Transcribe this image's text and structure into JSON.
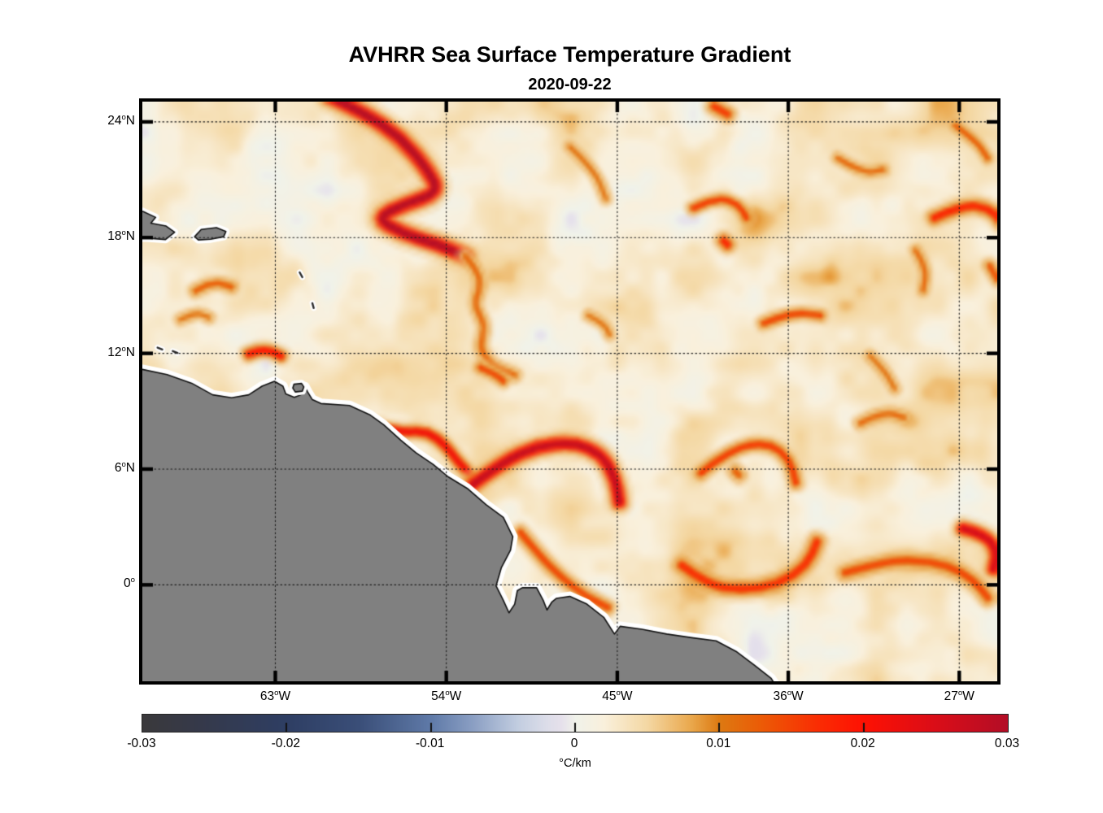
{
  "title": "AVHRR Sea Surface Temperature Gradient",
  "subtitle": "2020-09-22",
  "chart_data": {
    "type": "heatmap",
    "title": "AVHRR Sea Surface Temperature Gradient",
    "subtitle": "2020-09-22",
    "variable": "sea surface temperature gradient",
    "units": "°C/km",
    "lon_range": [
      -70,
      -25
    ],
    "lat_range": [
      -5,
      25.05
    ],
    "grid_style": "dotted",
    "x_ticks": [
      {
        "lon": -63,
        "label": "63°W"
      },
      {
        "lon": -54,
        "label": "54°W"
      },
      {
        "lon": -45,
        "label": "45°W"
      },
      {
        "lon": -36,
        "label": "36°W"
      },
      {
        "lon": -27,
        "label": "27°W"
      }
    ],
    "y_ticks": [
      {
        "lat": 24,
        "label": "24°N"
      },
      {
        "lat": 18,
        "label": "18°N"
      },
      {
        "lat": 12,
        "label": "12°N"
      },
      {
        "lat": 6,
        "label": "6°N"
      },
      {
        "lat": 0,
        "label": "0°"
      }
    ],
    "colorbar": {
      "orientation": "horizontal",
      "min": -0.03,
      "max": 0.03,
      "label": "°C/km",
      "ticks": [
        {
          "value": -0.03,
          "label": "-0.03"
        },
        {
          "value": -0.02,
          "label": "-0.02"
        },
        {
          "value": -0.01,
          "label": "-0.01"
        },
        {
          "value": 0,
          "label": "0"
        },
        {
          "value": 0.01,
          "label": "0.01"
        },
        {
          "value": 0.02,
          "label": "0.02"
        },
        {
          "value": 0.03,
          "label": "0.03"
        }
      ],
      "colormap": [
        [
          -0.03,
          "#3a393b"
        ],
        [
          -0.026,
          "#35394a"
        ],
        [
          -0.02,
          "#2e3e63"
        ],
        [
          -0.015,
          "#3a4e78"
        ],
        [
          -0.01,
          "#5f7aa8"
        ],
        [
          -0.007,
          "#8ca0c4"
        ],
        [
          -0.004,
          "#c2cde0"
        ],
        [
          -0.002,
          "#dcdde9"
        ],
        [
          -0.001,
          "#e5e0eb"
        ],
        [
          0.0,
          "#f0f2ea"
        ],
        [
          0.002,
          "#f9f0dc"
        ],
        [
          0.005,
          "#f4d8a4"
        ],
        [
          0.008,
          "#eaa94e"
        ],
        [
          0.01,
          "#dd7a12"
        ],
        [
          0.013,
          "#ec5a06"
        ],
        [
          0.017,
          "#fa2b03"
        ],
        [
          0.02,
          "#fe1103"
        ],
        [
          0.025,
          "#da0d18"
        ],
        [
          0.03,
          "#b30d26"
        ]
      ]
    },
    "land_color": "#808080",
    "coast_outline_color": "#111111",
    "coast_halo_color": "#ffffff",
    "field": {
      "background_mean": 0.0031,
      "noise_amplitude": 0.005,
      "fronts": [
        {
          "points": [
            [
              -60.1,
              25.3
            ],
            [
              -58.4,
              24.5
            ],
            [
              -56.4,
              23.2
            ],
            [
              -54.9,
              21.4
            ],
            [
              -54.4,
              20.3
            ],
            [
              -56.2,
              19.7
            ],
            [
              -57.7,
              19.0
            ],
            [
              -56.4,
              18.2
            ],
            [
              -54.4,
              17.6
            ],
            [
              -53.0,
              17.0
            ]
          ],
          "peak": 0.03,
          "width": 13
        },
        {
          "points": [
            [
              -53.0,
              17.0
            ],
            [
              -52.0,
              15.9
            ],
            [
              -52.6,
              14.5
            ],
            [
              -51.9,
              13.4
            ],
            [
              -52.3,
              12.2
            ],
            [
              -51.6,
              11.3
            ],
            [
              -50.4,
              10.8
            ]
          ],
          "peak": 0.012,
          "width": 8
        },
        {
          "points": [
            [
              -41.0,
              19.5
            ],
            [
              -39.8,
              20.1
            ],
            [
              -38.6,
              19.7
            ],
            [
              -38.2,
              19.0
            ]
          ],
          "peak": 0.016,
          "width": 8
        },
        {
          "points": [
            [
              -39.4,
              17.8
            ],
            [
              -39.2,
              17.6
            ]
          ],
          "peak": 0.018,
          "width": 10
        },
        {
          "points": [
            [
              -28.3,
              19.0
            ],
            [
              -26.8,
              19.7
            ],
            [
              -25.4,
              19.5
            ],
            [
              -24.8,
              18.8
            ]
          ],
          "peak": 0.018,
          "width": 10
        },
        {
          "points": [
            [
              -27.2,
              23.8
            ],
            [
              -26.1,
              23.0
            ],
            [
              -25.5,
              22.1
            ]
          ],
          "peak": 0.013,
          "width": 7
        },
        {
          "points": [
            [
              -29.3,
              17.3
            ],
            [
              -28.7,
              16.4
            ],
            [
              -28.9,
              15.2
            ]
          ],
          "peak": 0.012,
          "width": 7
        },
        {
          "points": [
            [
              -37.3,
              13.5
            ],
            [
              -35.8,
              14.1
            ],
            [
              -34.3,
              13.9
            ]
          ],
          "peak": 0.015,
          "width": 8
        },
        {
          "points": [
            [
              -31.7,
              11.8
            ],
            [
              -30.9,
              11.0
            ],
            [
              -30.4,
              10.1
            ]
          ],
          "peak": 0.011,
          "width": 7
        },
        {
          "points": [
            [
              -64.4,
              11.9
            ],
            [
              -63.6,
              12.2
            ],
            [
              -62.7,
              11.8
            ]
          ],
          "peak": 0.02,
          "width": 9
        },
        {
          "points": [
            [
              -67.2,
              15.2
            ],
            [
              -66.3,
              15.7
            ],
            [
              -65.3,
              15.4
            ]
          ],
          "peak": 0.013,
          "width": 8
        },
        {
          "points": [
            [
              -58.0,
              8.2
            ],
            [
              -56.5,
              7.8
            ],
            [
              -55.0,
              7.9
            ],
            [
              -54.0,
              7.1
            ],
            [
              -53.4,
              6.3
            ],
            [
              -52.8,
              5.7
            ]
          ],
          "peak": 0.022,
          "width": 9
        },
        {
          "points": [
            [
              -52.6,
              5.1
            ],
            [
              -51.0,
              6.3
            ],
            [
              -49.2,
              7.1
            ],
            [
              -47.3,
              7.3
            ],
            [
              -45.8,
              6.7
            ],
            [
              -45.1,
              5.4
            ],
            [
              -44.9,
              4.2
            ]
          ],
          "peak": 0.028,
          "width": 12
        },
        {
          "points": [
            [
              -50.1,
              2.6
            ],
            [
              -49.0,
              1.3
            ],
            [
              -48.0,
              0.3
            ],
            [
              -46.7,
              -0.7
            ],
            [
              -45.5,
              -1.3
            ]
          ],
          "peak": 0.015,
          "width": 9
        },
        {
          "points": [
            [
              -40.6,
              5.7
            ],
            [
              -39.0,
              7.0
            ],
            [
              -37.0,
              7.3
            ],
            [
              -35.9,
              6.4
            ],
            [
              -35.6,
              5.2
            ]
          ],
          "peak": 0.016,
          "width": 9
        },
        {
          "points": [
            [
              -38.8,
              5.8
            ],
            [
              -38.6,
              5.6
            ]
          ],
          "peak": 0.013,
          "width": 9
        },
        {
          "points": [
            [
              -41.6,
              0.9
            ],
            [
              -40.3,
              -0.1
            ],
            [
              -38.5,
              -0.4
            ],
            [
              -36.5,
              -0.1
            ],
            [
              -35.0,
              0.9
            ],
            [
              -34.5,
              2.1
            ]
          ],
          "peak": 0.017,
          "width": 11
        },
        {
          "points": [
            [
              -33.0,
              0.5
            ],
            [
              -31.3,
              1.0
            ],
            [
              -29.6,
              1.2
            ],
            [
              -27.6,
              0.9
            ],
            [
              -26.2,
              0.1
            ],
            [
              -25.5,
              -0.8
            ]
          ],
          "peak": 0.015,
          "width": 10
        },
        {
          "points": [
            [
              -26.8,
              2.8
            ],
            [
              -25.6,
              2.5
            ],
            [
              -25.0,
              1.6
            ],
            [
              -25.2,
              0.7
            ]
          ],
          "peak": 0.026,
          "width": 11
        },
        {
          "points": [
            [
              -47.5,
              22.7
            ],
            [
              -46.2,
              21.5
            ],
            [
              -45.6,
              20.0
            ]
          ],
          "peak": 0.011,
          "width": 7
        },
        {
          "points": [
            [
              -52.2,
              11.2
            ],
            [
              -51.5,
              10.9
            ],
            [
              -51.0,
              10.5
            ]
          ],
          "peak": 0.015,
          "width": 8
        },
        {
          "points": [
            [
              -46.5,
              13.9
            ],
            [
              -45.7,
              13.5
            ],
            [
              -45.4,
              12.9
            ]
          ],
          "peak": 0.011,
          "width": 7
        },
        {
          "points": [
            [
              -68.0,
              13.7
            ],
            [
              -67.2,
              14.1
            ],
            [
              -66.5,
              13.8
            ]
          ],
          "peak": 0.011,
          "width": 7
        },
        {
          "points": [
            [
              -33.4,
              22.1
            ],
            [
              -32.1,
              21.3
            ],
            [
              -31.0,
              21.5
            ]
          ],
          "peak": 0.012,
          "width": 7
        },
        {
          "points": [
            [
              -39.9,
              24.8
            ],
            [
              -39.2,
              24.4
            ]
          ],
          "peak": 0.016,
          "width": 10
        },
        {
          "points": [
            [
              -25.4,
              16.5
            ],
            [
              -25.0,
              15.8
            ]
          ],
          "peak": 0.014,
          "width": 8
        },
        {
          "points": [
            [
              -32.2,
              8.3
            ],
            [
              -31.0,
              8.9
            ],
            [
              -29.9,
              8.6
            ]
          ],
          "peak": 0.012,
          "width": 8
        }
      ]
    },
    "coastline": {
      "mainland": [
        [
          -71.5,
          11.4
        ],
        [
          -70,
          11.17
        ],
        [
          -68.7,
          10.9
        ],
        [
          -67.4,
          10.45
        ],
        [
          -66.3,
          9.85
        ],
        [
          -65.3,
          9.7
        ],
        [
          -64.4,
          9.85
        ],
        [
          -63.7,
          10.3
        ],
        [
          -63.05,
          10.55
        ],
        [
          -62.6,
          10.3
        ],
        [
          -62.45,
          9.9
        ],
        [
          -62,
          9.72
        ],
        [
          -61.55,
          9.9
        ],
        [
          -61.45,
          10.28
        ],
        [
          -61.3,
          10
        ],
        [
          -61.05,
          9.6
        ],
        [
          -60.6,
          9.4
        ],
        [
          -59.1,
          9.3
        ],
        [
          -58,
          8.8
        ],
        [
          -57.3,
          8.3
        ],
        [
          -56.4,
          7.5
        ],
        [
          -55.6,
          6.85
        ],
        [
          -54.7,
          6.25
        ],
        [
          -53.9,
          5.6
        ],
        [
          -52.9,
          5
        ],
        [
          -51.9,
          4.15
        ],
        [
          -51,
          3.5
        ],
        [
          -50.5,
          2.5
        ],
        [
          -50.62,
          1.8
        ],
        [
          -51.1,
          0.9
        ],
        [
          -51.38,
          -0.05
        ],
        [
          -51,
          -0.8
        ],
        [
          -50.7,
          -1.45
        ],
        [
          -50.4,
          -1
        ],
        [
          -50.26,
          -0.3
        ],
        [
          -50,
          -0.15
        ],
        [
          -49.25,
          -0.15
        ],
        [
          -48.9,
          -0.8
        ],
        [
          -48.7,
          -1.3
        ],
        [
          -48.45,
          -0.9
        ],
        [
          -48.2,
          -0.7
        ],
        [
          -47.5,
          -0.6
        ],
        [
          -46.6,
          -1
        ],
        [
          -45.7,
          -1.7
        ],
        [
          -45.15,
          -2.55
        ],
        [
          -44.85,
          -2.15
        ],
        [
          -43.7,
          -2.3
        ],
        [
          -42.4,
          -2.55
        ],
        [
          -41,
          -2.75
        ],
        [
          -39.8,
          -2.9
        ],
        [
          -38.75,
          -3.45
        ],
        [
          -37.8,
          -4.15
        ],
        [
          -36.9,
          -4.85
        ],
        [
          -36.55,
          -5.4
        ],
        [
          -36.3,
          -6.5
        ],
        [
          -71.5,
          -6.5
        ]
      ],
      "hispaniola": [
        [
          -71.5,
          19.7
        ],
        [
          -69.95,
          19.35
        ],
        [
          -69.3,
          19.05
        ],
        [
          -69.55,
          18.75
        ],
        [
          -68.75,
          18.6
        ],
        [
          -68.3,
          18.28
        ],
        [
          -68.78,
          17.9
        ],
        [
          -69.9,
          17.98
        ],
        [
          -71.5,
          17.75
        ]
      ],
      "puerto_rico": [
        [
          -67.25,
          18.05
        ],
        [
          -66.9,
          18.42
        ],
        [
          -66.1,
          18.52
        ],
        [
          -65.6,
          18.32
        ],
        [
          -65.72,
          18.05
        ],
        [
          -66.4,
          17.92
        ],
        [
          -67.05,
          17.88
        ]
      ],
      "trinidad": [
        [
          -62.02,
          10.4
        ],
        [
          -61.62,
          10.44
        ],
        [
          -61.5,
          10.26
        ],
        [
          -61.58,
          10.04
        ],
        [
          -61.95,
          10.0
        ],
        [
          -62.08,
          10.2
        ]
      ],
      "small_islands": [
        [
          [
            -69.2,
            12.3
          ],
          [
            -68.95,
            12.2
          ]
        ],
        [
          [
            -68.4,
            12.12
          ],
          [
            -68.15,
            12.02
          ]
        ],
        [
          [
            -61.72,
            16.2
          ],
          [
            -61.58,
            15.95
          ]
        ],
        [
          [
            -61.05,
            14.6
          ],
          [
            -60.98,
            14.35
          ]
        ]
      ]
    }
  }
}
